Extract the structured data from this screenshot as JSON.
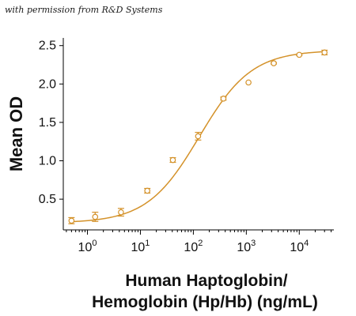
{
  "watermark": "with permission from R&D Systems",
  "chart_data": {
    "type": "scatter",
    "xscale": "log",
    "xlim": [
      0.35,
      45000
    ],
    "ylim": [
      0.1,
      2.6
    ],
    "yticks": [
      0.5,
      1.0,
      1.5,
      2.0,
      2.5
    ],
    "ytick_labels": [
      "0.5",
      "1.0",
      "1.5",
      "2.0",
      "2.5"
    ],
    "xticks": [
      1,
      10,
      100,
      1000,
      10000
    ],
    "xtick_labels": [
      {
        "base": "10",
        "exp": "0"
      },
      {
        "base": "10",
        "exp": "1"
      },
      {
        "base": "10",
        "exp": "2"
      },
      {
        "base": "10",
        "exp": "3"
      },
      {
        "base": "10",
        "exp": "4"
      }
    ],
    "ylabel": "Mean OD",
    "xlabel": [
      "Human Haptoglobin/",
      "Hemoglobin (Hp/Hb) (ng/mL)"
    ],
    "color": "#D4922A",
    "points": [
      {
        "x": 0.5,
        "y": 0.22,
        "err": 0.04
      },
      {
        "x": 1.4,
        "y": 0.27,
        "err": 0.06
      },
      {
        "x": 4.3,
        "y": 0.33,
        "err": 0.05
      },
      {
        "x": 13.5,
        "y": 0.61,
        "err": 0.03
      },
      {
        "x": 41,
        "y": 1.01,
        "err": 0.03
      },
      {
        "x": 123,
        "y": 1.32,
        "err": 0.05
      },
      {
        "x": 370,
        "y": 1.81,
        "err": 0.02
      },
      {
        "x": 1100,
        "y": 2.02,
        "err": 0.0
      },
      {
        "x": 3300,
        "y": 2.27,
        "err": 0.01
      },
      {
        "x": 10000,
        "y": 2.38,
        "err": 0.01
      },
      {
        "x": 30000,
        "y": 2.41,
        "err": 0.03
      }
    ],
    "fit": {
      "model": "4PL",
      "bottom": 0.19,
      "top": 2.44,
      "ec50": 130,
      "hill": 0.88
    }
  }
}
